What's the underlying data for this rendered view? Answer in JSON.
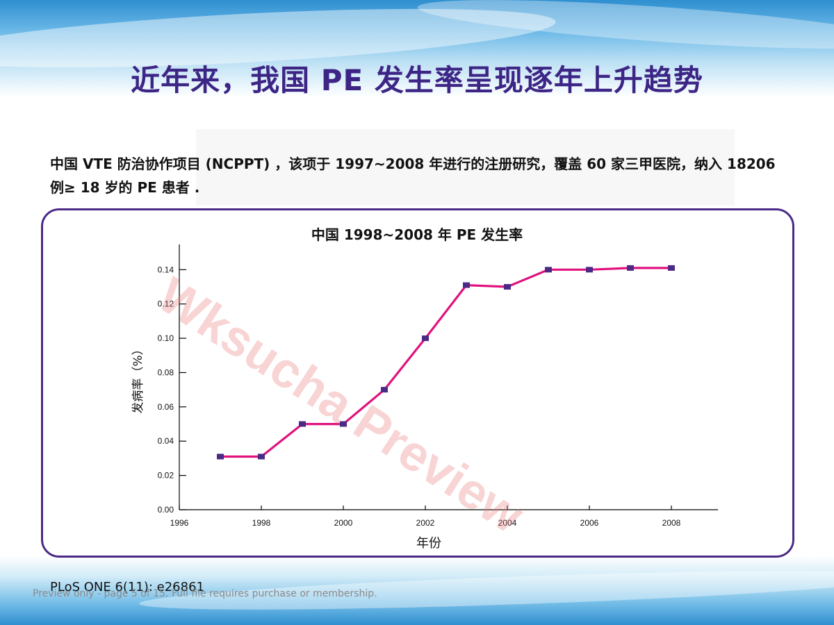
{
  "slide": {
    "title": "近年来，我国 PE 发生率呈现逐年上升趋势",
    "intro": "中国 VTE 防治协作项目 (NCPPT) ，该项于 1997~2008 年进行的注册研究，覆盖 60 家三甲医院，纳入 18206 例≥ 18 岁的 PE 患者 .",
    "source": "PLoS ONE 6(11): e26861",
    "footer_note": "Preview only - page 5 of 15. Full file requires purchase or membership.",
    "watermark": "Wksucha Preview"
  },
  "chart_data": {
    "type": "line",
    "title": "中国 1998~2008 年 PE 发生率",
    "xlabel": "年份",
    "ylabel": "发病率（%）",
    "xlim": [
      1996,
      2009
    ],
    "ylim": [
      0,
      0.15
    ],
    "x_ticks": [
      1996,
      1998,
      2000,
      2002,
      2004,
      2006,
      2008
    ],
    "y_ticks": [
      0.0,
      0.02,
      0.04,
      0.06,
      0.08,
      0.1,
      0.12,
      0.14
    ],
    "series": [
      {
        "name": "",
        "x": [
          1997,
          1998,
          1999,
          2000,
          2001,
          2002,
          2003,
          2004,
          2005,
          2006,
          2007,
          2008
        ],
        "values": [
          0.031,
          0.031,
          0.05,
          0.05,
          0.07,
          0.1,
          0.131,
          0.13,
          0.14,
          0.14,
          0.141,
          0.141
        ]
      }
    ],
    "line_color": "#e0127e",
    "marker_color": "#4b2a86",
    "grid": false,
    "legend": "none"
  }
}
